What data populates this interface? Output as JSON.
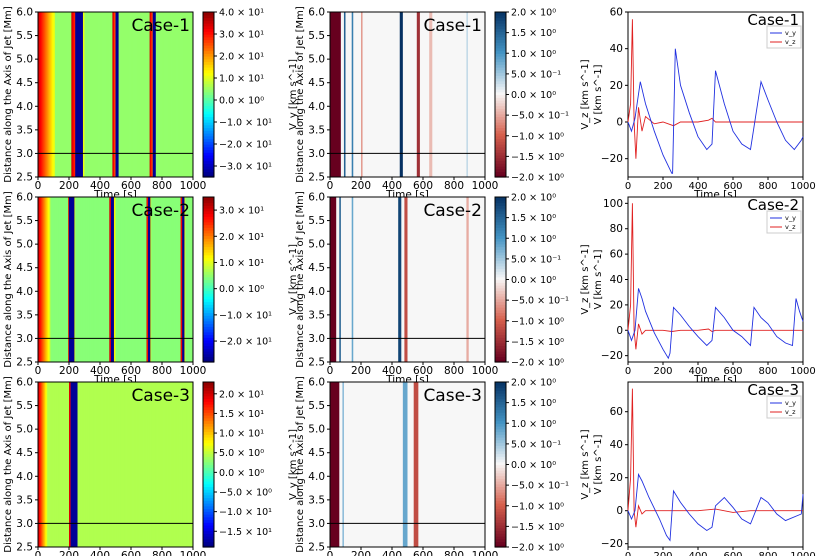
{
  "rows": [
    {
      "case_label": "Case-1",
      "vy_cbar": {
        "label": "V_y [km s^-1]",
        "ticks": [
          "4.0 × 10¹",
          "3.0 × 10¹",
          "2.0 × 10¹",
          "1.0 × 10¹",
          "0.0 × 10⁰",
          "−1.0 × 10¹",
          "−2.0 × 10¹",
          "−3.0 × 10¹"
        ],
        "range": [
          -35,
          40
        ],
        "tick_values": [
          40,
          30,
          20,
          10,
          0,
          -10,
          -20,
          -30
        ]
      },
      "vz_cbar": {
        "label": "V_z [km s^-1]",
        "ticks": [
          "2.0 × 10⁰",
          "1.5 × 10⁰",
          "1.0 × 10⁰",
          "5.0 × 10⁻¹",
          "0.0 × 10⁰",
          "−5.0 × 10⁻¹",
          "−1.0 × 10⁰",
          "−1.5 × 10⁰",
          "−2.0 × 10⁰"
        ],
        "range": [
          -2,
          2
        ],
        "tick_values": [
          2,
          1.5,
          1,
          0.5,
          0,
          -0.5,
          -1,
          -1.5,
          -2
        ]
      },
      "line_ylim": [
        -30,
        60
      ],
      "line_yticks": [
        "60",
        "40",
        "20",
        "0",
        "−20"
      ],
      "line_ytick_values": [
        60,
        40,
        20,
        0,
        -20
      ],
      "vy_fronts": [
        [
          0,
          110
        ],
        [
          215,
          300
        ],
        [
          480,
          520
        ],
        [
          720,
          760
        ]
      ],
      "vy_troughs": [
        [
          240,
          275
        ],
        [
          500,
          505
        ],
        [
          740,
          745
        ]
      ],
      "vz_bands": [
        [
          0,
          70,
          -2,
          "dark"
        ],
        [
          90,
          100,
          1.5,
          ""
        ],
        [
          140,
          150,
          1.2,
          ""
        ],
        [
          200,
          210,
          -0.6,
          ""
        ],
        [
          450,
          470,
          2,
          ""
        ],
        [
          560,
          580,
          -1.5,
          ""
        ],
        [
          640,
          660,
          -0.4,
          ""
        ],
        [
          880,
          890,
          0.3,
          ""
        ]
      ],
      "vy_series": [
        [
          0,
          0
        ],
        [
          20,
          -5
        ],
        [
          40,
          2
        ],
        [
          70,
          22
        ],
        [
          100,
          10
        ],
        [
          150,
          -5
        ],
        [
          200,
          -18
        ],
        [
          250,
          -28
        ],
        [
          255,
          -28
        ],
        [
          270,
          40
        ],
        [
          300,
          20
        ],
        [
          350,
          5
        ],
        [
          400,
          -8
        ],
        [
          450,
          -15
        ],
        [
          480,
          -12
        ],
        [
          500,
          28
        ],
        [
          550,
          10
        ],
        [
          600,
          -5
        ],
        [
          650,
          -12
        ],
        [
          700,
          -15
        ],
        [
          760,
          22
        ],
        [
          800,
          12
        ],
        [
          850,
          0
        ],
        [
          900,
          -10
        ],
        [
          950,
          -15
        ],
        [
          990,
          -10
        ],
        [
          1000,
          -8
        ]
      ],
      "vz_series": [
        [
          0,
          0
        ],
        [
          15,
          10
        ],
        [
          25,
          56
        ],
        [
          35,
          0
        ],
        [
          45,
          -20
        ],
        [
          60,
          8
        ],
        [
          80,
          -5
        ],
        [
          100,
          3
        ],
        [
          150,
          -1
        ],
        [
          200,
          0
        ],
        [
          260,
          -2
        ],
        [
          300,
          0
        ],
        [
          400,
          0
        ],
        [
          460,
          1
        ],
        [
          480,
          2
        ],
        [
          500,
          0
        ],
        [
          600,
          0
        ],
        [
          700,
          0
        ],
        [
          800,
          0
        ],
        [
          900,
          0
        ],
        [
          1000,
          0
        ]
      ]
    },
    {
      "case_label": "Case-2",
      "vy_cbar": {
        "label": "V_y [km s^-1]",
        "ticks": [
          "3.0 × 10¹",
          "2.0 × 10¹",
          "1.0 × 10¹",
          "0.0 × 10⁰",
          "−1.0 × 10¹",
          "−2.0 × 10¹"
        ],
        "range": [
          -28,
          35
        ],
        "tick_values": [
          30,
          20,
          10,
          0,
          -10,
          -20
        ]
      },
      "vz_cbar": {
        "label": "V_z [km s^-1]",
        "ticks": [
          "2.0 × 10⁰",
          "1.5 × 10⁰",
          "1.0 × 10⁰",
          "5.0 × 10⁻¹",
          "0.0 × 10⁰",
          "−5.0 × 10⁻¹",
          "−1.0 × 10⁰",
          "−1.5 × 10⁰",
          "−2.0 × 10⁰"
        ],
        "range": [
          -2,
          2
        ],
        "tick_values": [
          2,
          1.5,
          1,
          0.5,
          0,
          -0.5,
          -1,
          -1.5,
          -2
        ]
      },
      "line_ylim": [
        -25,
        105
      ],
      "line_yticks": [
        "100",
        "80",
        "60",
        "40",
        "20",
        "0",
        "−20"
      ],
      "line_ytick_values": [
        100,
        80,
        60,
        40,
        20,
        0,
        -20
      ],
      "vy_fronts": [
        [
          0,
          80
        ],
        [
          195,
          240
        ],
        [
          460,
          500
        ],
        [
          700,
          730
        ],
        [
          920,
          950
        ]
      ],
      "vy_troughs": [
        [
          200,
          220
        ],
        [
          470,
          475
        ],
        [
          710,
          712
        ],
        [
          930,
          932
        ]
      ],
      "vz_bands": [
        [
          0,
          40,
          -2,
          "dark"
        ],
        [
          60,
          70,
          1.5,
          ""
        ],
        [
          140,
          150,
          0.8,
          ""
        ],
        [
          440,
          460,
          1.8,
          ""
        ],
        [
          480,
          500,
          -1.2,
          ""
        ],
        [
          880,
          895,
          -0.5,
          ""
        ]
      ],
      "vy_series": [
        [
          0,
          0
        ],
        [
          20,
          -8
        ],
        [
          40,
          0
        ],
        [
          60,
          33
        ],
        [
          80,
          25
        ],
        [
          100,
          15
        ],
        [
          150,
          -2
        ],
        [
          200,
          -15
        ],
        [
          230,
          -22
        ],
        [
          240,
          -18
        ],
        [
          260,
          18
        ],
        [
          300,
          12
        ],
        [
          350,
          3
        ],
        [
          400,
          -5
        ],
        [
          450,
          -12
        ],
        [
          480,
          -8
        ],
        [
          500,
          18
        ],
        [
          550,
          10
        ],
        [
          600,
          0
        ],
        [
          650,
          -5
        ],
        [
          700,
          -12
        ],
        [
          720,
          18
        ],
        [
          760,
          10
        ],
        [
          800,
          5
        ],
        [
          850,
          -5
        ],
        [
          900,
          -10
        ],
        [
          940,
          -12
        ],
        [
          960,
          25
        ],
        [
          980,
          15
        ],
        [
          1000,
          7
        ]
      ],
      "vz_series": [
        [
          0,
          0
        ],
        [
          15,
          20
        ],
        [
          25,
          100
        ],
        [
          35,
          0
        ],
        [
          45,
          -15
        ],
        [
          60,
          5
        ],
        [
          80,
          -3
        ],
        [
          100,
          0
        ],
        [
          150,
          0
        ],
        [
          200,
          0
        ],
        [
          250,
          -1
        ],
        [
          300,
          0
        ],
        [
          400,
          0
        ],
        [
          460,
          1
        ],
        [
          480,
          -1
        ],
        [
          500,
          0
        ],
        [
          600,
          0
        ],
        [
          700,
          0
        ],
        [
          800,
          0
        ],
        [
          900,
          0
        ],
        [
          1000,
          0
        ]
      ]
    },
    {
      "case_label": "Case-3",
      "vy_cbar": {
        "label": "V_y [km s^-1]",
        "ticks": [
          "2.0 × 10¹",
          "1.5 × 10¹",
          "1.0 × 10¹",
          "5.0 × 10⁰",
          "0.0 × 10⁰",
          "−5.0 × 10⁰",
          "−1.0 × 10¹",
          "−1.5 × 10¹"
        ],
        "range": [
          -19,
          23
        ],
        "tick_values": [
          20,
          15,
          10,
          5,
          0,
          -5,
          -10,
          -15
        ]
      },
      "vz_cbar": {
        "label": "V_z [km s^-1]",
        "ticks": [
          "2.0 × 10⁰",
          "1.5 × 10⁰",
          "1.0 × 10⁰",
          "5.0 × 10⁻¹",
          "0.0 × 10⁰",
          "−5.0 × 10⁻¹",
          "−1.0 × 10⁰",
          "−1.5 × 10⁰",
          "−2.0 × 10⁰"
        ],
        "range": [
          -2,
          2
        ],
        "tick_values": [
          2,
          1.5,
          1,
          0.5,
          0,
          -0.5,
          -1,
          -1.5,
          -2
        ]
      },
      "line_ylim": [
        -22,
        78
      ],
      "line_yticks": [
        "60",
        "40",
        "20",
        "0",
        "−20"
      ],
      "line_ytick_values": [
        60,
        40,
        20,
        0,
        -20
      ],
      "vy_fronts": [
        [
          0,
          60
        ],
        [
          200,
          240
        ]
      ],
      "vy_troughs": [
        [
          210,
          240
        ]
      ],
      "vz_bands": [
        [
          0,
          60,
          -2,
          "dark"
        ],
        [
          80,
          90,
          0.6,
          ""
        ],
        [
          470,
          500,
          0.8,
          ""
        ],
        [
          540,
          570,
          -1.2,
          ""
        ]
      ],
      "vy_series": [
        [
          0,
          0
        ],
        [
          20,
          -5
        ],
        [
          40,
          0
        ],
        [
          60,
          22
        ],
        [
          80,
          18
        ],
        [
          120,
          8
        ],
        [
          180,
          -5
        ],
        [
          220,
          -15
        ],
        [
          240,
          -18
        ],
        [
          260,
          12
        ],
        [
          300,
          5
        ],
        [
          350,
          -2
        ],
        [
          400,
          -8
        ],
        [
          450,
          -12
        ],
        [
          480,
          -10
        ],
        [
          500,
          3
        ],
        [
          550,
          8
        ],
        [
          600,
          2
        ],
        [
          650,
          -5
        ],
        [
          700,
          -8
        ],
        [
          760,
          8
        ],
        [
          800,
          5
        ],
        [
          850,
          -2
        ],
        [
          900,
          -6
        ],
        [
          990,
          -2
        ],
        [
          1000,
          10
        ]
      ],
      "vz_series": [
        [
          0,
          0
        ],
        [
          15,
          20
        ],
        [
          25,
          74
        ],
        [
          35,
          0
        ],
        [
          45,
          -10
        ],
        [
          60,
          3
        ],
        [
          80,
          -2
        ],
        [
          100,
          0
        ],
        [
          200,
          0
        ],
        [
          300,
          0
        ],
        [
          400,
          0
        ],
        [
          500,
          1
        ],
        [
          600,
          -1
        ],
        [
          700,
          0
        ],
        [
          800,
          0
        ],
        [
          900,
          0
        ],
        [
          1000,
          0
        ]
      ]
    }
  ],
  "shared": {
    "y_axis_label": "Distance along the Axis of Jet [Mm]",
    "x_axis_label": "Time [s]",
    "line_ylabel": "V [km s^-1]",
    "map_yticks": [
      "6.0",
      "5.5",
      "5.0",
      "4.5",
      "4.0",
      "3.5",
      "3.0",
      "2.5"
    ],
    "map_ytick_values": [
      6.0,
      5.5,
      5.0,
      4.5,
      4.0,
      3.5,
      3.0,
      2.5
    ],
    "xticks": [
      "0",
      "200",
      "400",
      "600",
      "800",
      "1000"
    ],
    "xtick_values": [
      0,
      200,
      400,
      600,
      800,
      1000
    ],
    "line_xticks": [
      "0",
      "200",
      "400",
      "600",
      "800",
      "1000"
    ],
    "legend_vy": "v_y",
    "legend_vz": "v_z",
    "cut_height": 3.0
  },
  "chart_data": [
    {
      "type": "heatmap",
      "title": "Case-1",
      "xlabel": "Time [s]",
      "ylabel": "Distance along the Axis of Jet [Mm]",
      "xlim": [
        0,
        1000
      ],
      "ylim": [
        2.5,
        6.0
      ],
      "colorbar": "V_y [km s^-1]"
    },
    {
      "type": "heatmap",
      "title": "Case-1",
      "xlabel": "Time [s]",
      "ylabel": "Distance along the Axis of Jet [Mm]",
      "xlim": [
        0,
        1000
      ],
      "ylim": [
        2.5,
        6.0
      ],
      "colorbar": "V_z [km s^-1]"
    },
    {
      "type": "line",
      "title": "Case-1",
      "xlabel": "Time [s]",
      "ylabel": "V [km s^-1]",
      "series": [
        {
          "name": "v_y"
        },
        {
          "name": "v_z"
        }
      ]
    },
    {
      "type": "heatmap",
      "title": "Case-2",
      "xlabel": "Time [s]",
      "ylabel": "Distance along the Axis of Jet [Mm]",
      "xlim": [
        0,
        1000
      ],
      "ylim": [
        2.5,
        6.0
      ],
      "colorbar": "V_y [km s^-1]"
    },
    {
      "type": "heatmap",
      "title": "Case-2",
      "xlabel": "Time [s]",
      "ylabel": "Distance along the Axis of Jet [Mm]",
      "xlim": [
        0,
        1000
      ],
      "ylim": [
        2.5,
        6.0
      ],
      "colorbar": "V_z [km s^-1]"
    },
    {
      "type": "line",
      "title": "Case-2",
      "xlabel": "Time [s]",
      "ylabel": "V [km s^-1]",
      "series": [
        {
          "name": "v_y"
        },
        {
          "name": "v_z"
        }
      ]
    },
    {
      "type": "heatmap",
      "title": "Case-3",
      "xlabel": "Time [s]",
      "ylabel": "Distance along the Axis of Jet [Mm]",
      "xlim": [
        0,
        1000
      ],
      "ylim": [
        2.5,
        6.0
      ],
      "colorbar": "V_y [km s^-1]"
    },
    {
      "type": "heatmap",
      "title": "Case-3",
      "xlabel": "Time [s]",
      "ylabel": "Distance along the Axis of Jet [Mm]",
      "xlim": [
        0,
        1000
      ],
      "ylim": [
        2.5,
        6.0
      ],
      "colorbar": "V_z [km s^-1]"
    },
    {
      "type": "line",
      "title": "Case-3",
      "xlabel": "Time [s]",
      "ylabel": "V [km s^-1]",
      "series": [
        {
          "name": "v_y"
        },
        {
          "name": "v_z"
        }
      ]
    }
  ]
}
